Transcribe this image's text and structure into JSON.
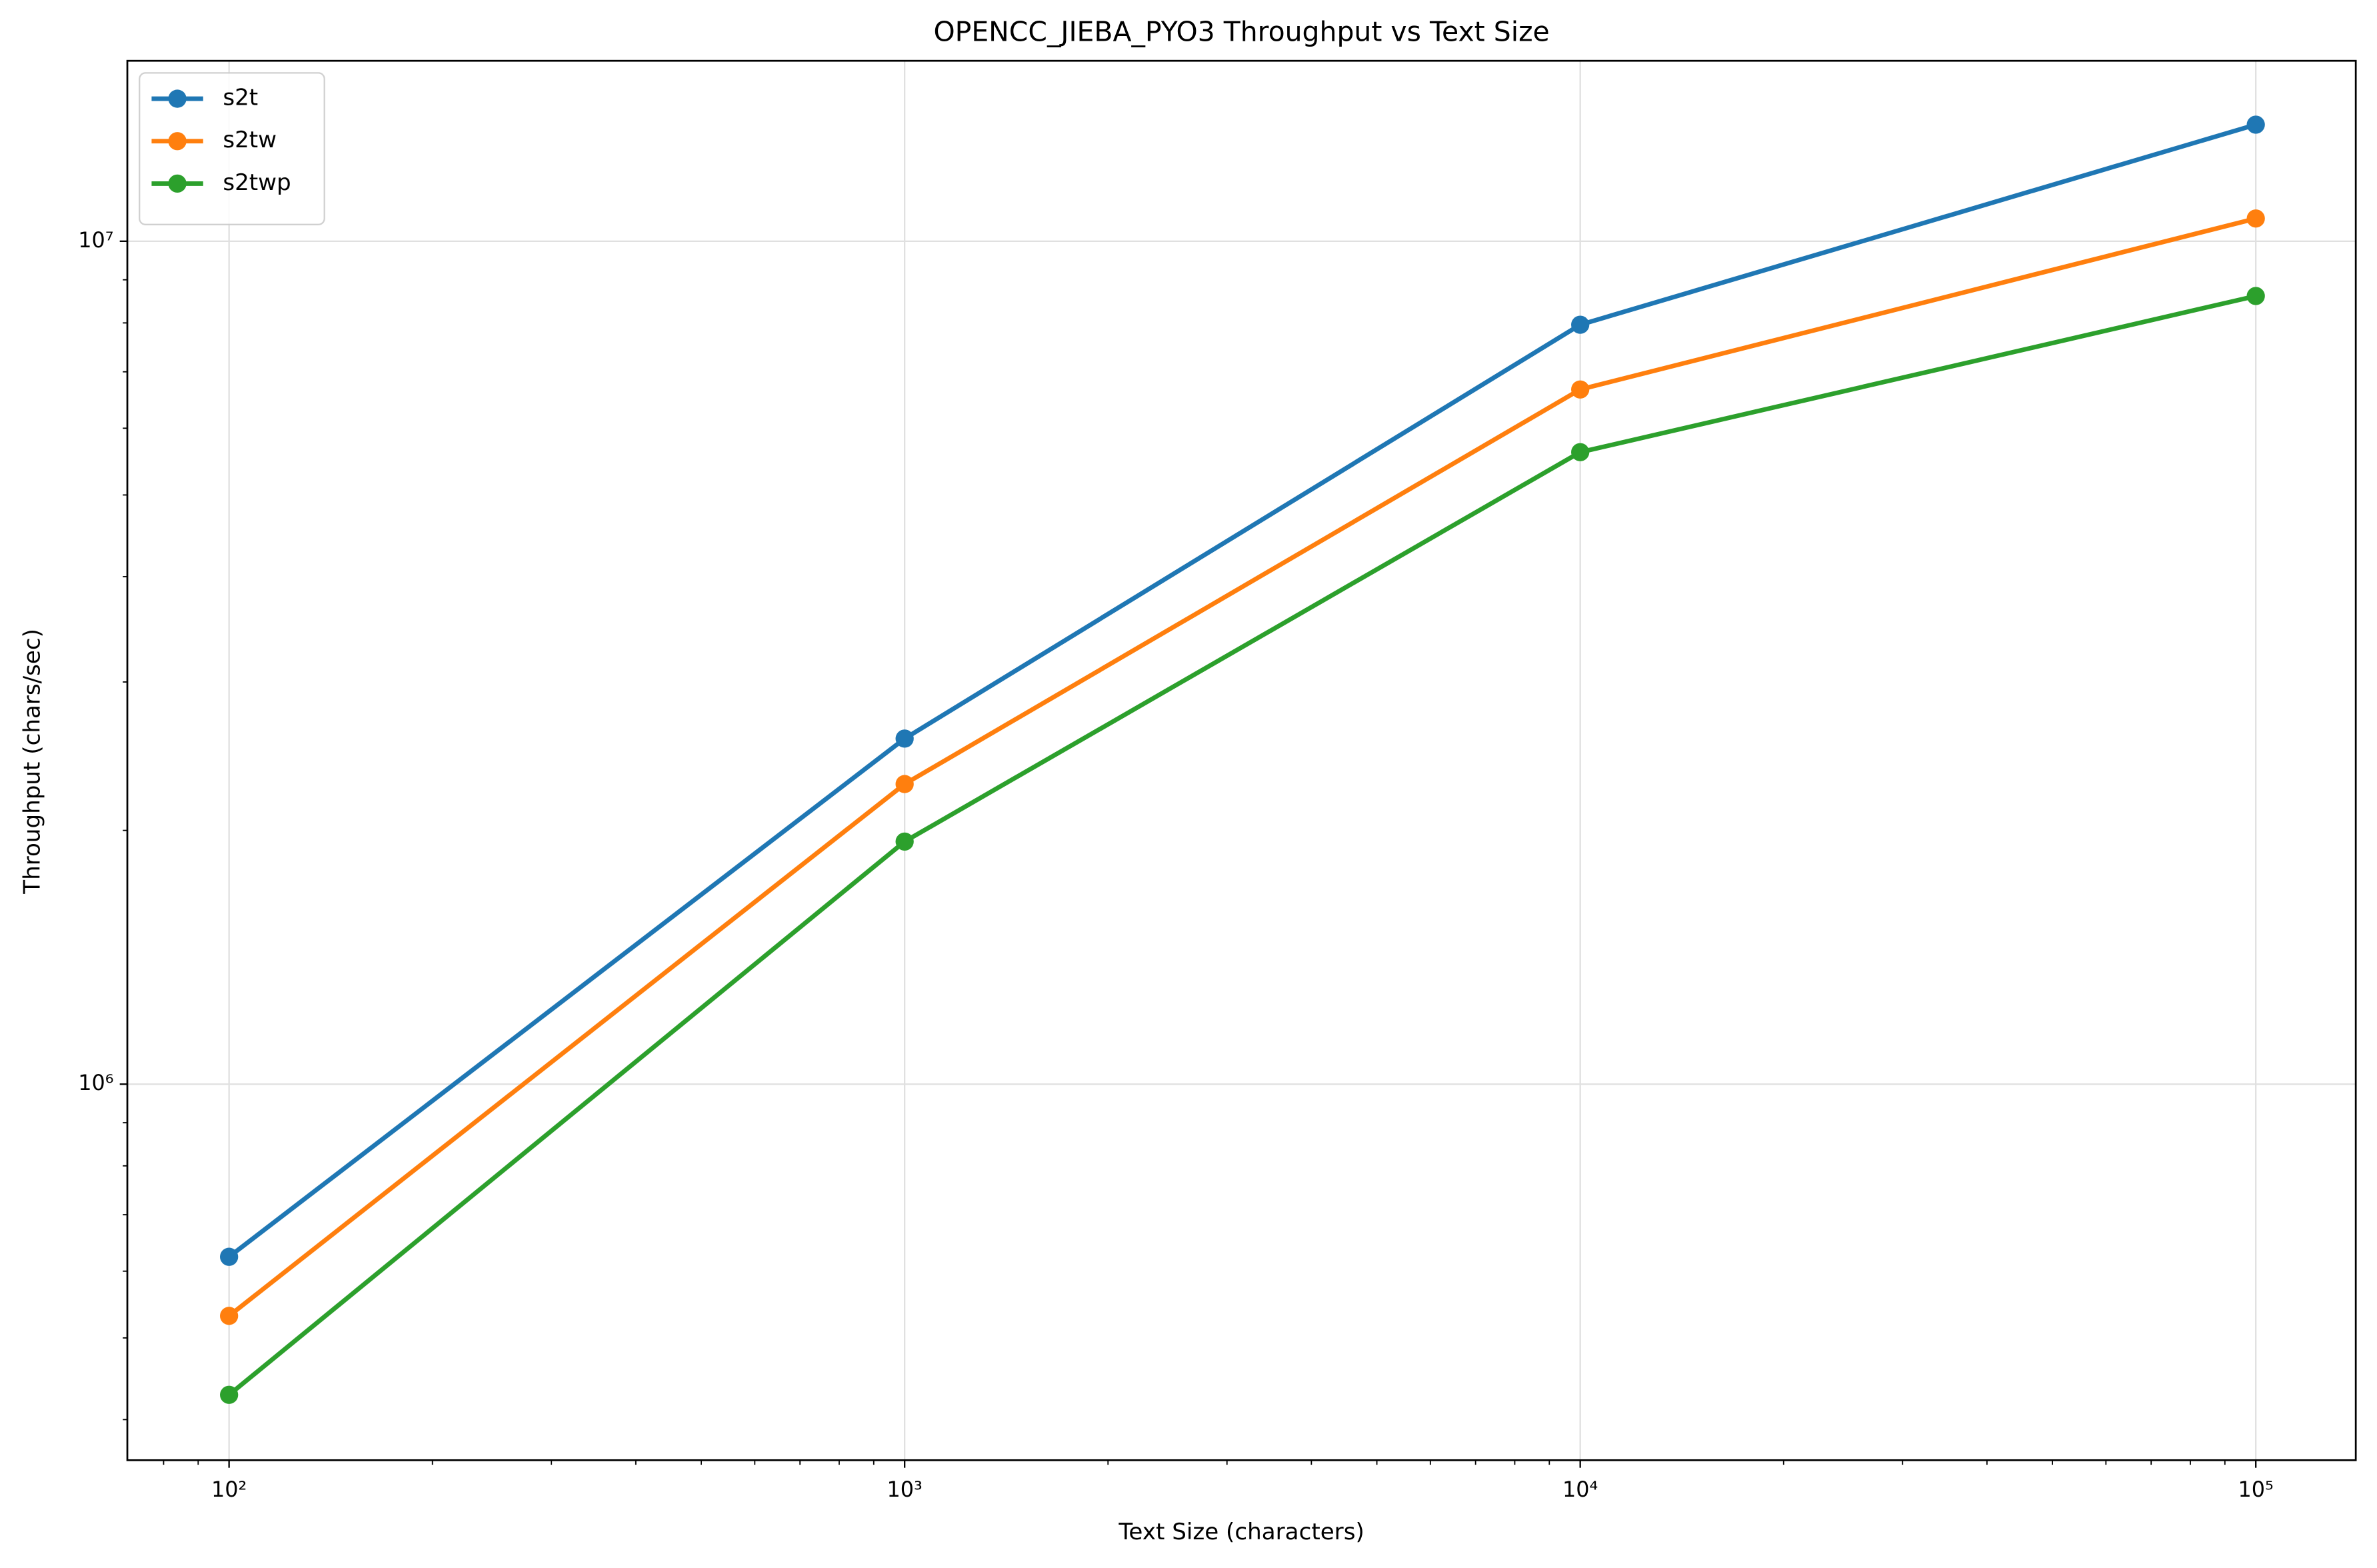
{
  "chart_data": {
    "type": "line",
    "title": "OPENCC_JIEBA_PYO3 Throughput vs Text Size",
    "xlabel": "Text Size (characters)",
    "ylabel": "Throughput (chars/sec)",
    "x": [
      100,
      1000,
      10000,
      100000
    ],
    "series": [
      {
        "name": "s2t",
        "color": "#1f77b4",
        "values": [
          624000,
          2570000,
          7960000,
          13750000
        ]
      },
      {
        "name": "s2tw",
        "color": "#ff7f0e",
        "values": [
          531000,
          2270000,
          6670000,
          10640000
        ]
      },
      {
        "name": "s2twp",
        "color": "#2ca02c",
        "values": [
          428000,
          1940000,
          5620000,
          8610000
        ]
      }
    ],
    "xscale": "log",
    "yscale": "log",
    "xlim": [
      70.7,
      140600
    ],
    "ylim": [
      358000,
      16370000
    ],
    "xticks": [
      {
        "value": 100,
        "label": "10²"
      },
      {
        "value": 1000,
        "label": "10³"
      },
      {
        "value": 10000,
        "label": "10⁴"
      },
      {
        "value": 100000,
        "label": "10⁵"
      }
    ],
    "yticks": [
      {
        "value": 1000000,
        "label": "10⁶"
      },
      {
        "value": 10000000,
        "label": "10⁷"
      }
    ],
    "grid": true,
    "legend": "upper left"
  }
}
